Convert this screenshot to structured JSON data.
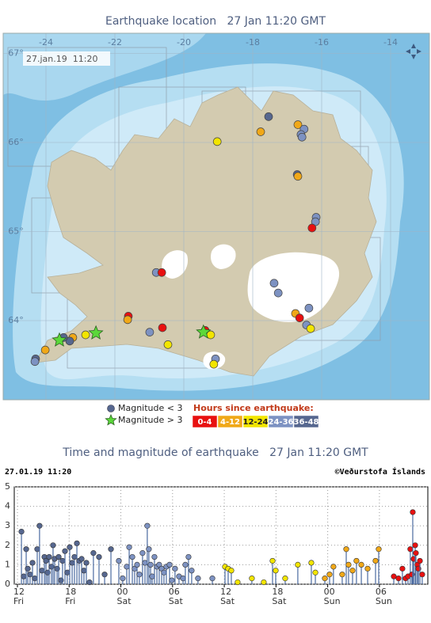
{
  "map": {
    "title": "Earthquake location   27 Jan 11:20 GMT",
    "timestamp": "27.jan.19  11:20",
    "lonticks": [
      -24,
      -22,
      -20,
      -18,
      -16,
      -14
    ],
    "latticks": [
      {
        "value": 67,
        "label": "67°"
      },
      {
        "value": 66,
        "label": "66°"
      },
      {
        "value": 65,
        "label": "65°"
      },
      {
        "value": 64,
        "label": "64°"
      }
    ],
    "quakes": [
      {
        "lon": -17.54,
        "lat": 66.29,
        "age": "36-48"
      },
      {
        "lon": -17.77,
        "lat": 66.12,
        "age": "4-12"
      },
      {
        "lon": -16.69,
        "lat": 66.2,
        "age": "4-12"
      },
      {
        "lon": -16.51,
        "lat": 66.15,
        "age": "24-36"
      },
      {
        "lon": -16.6,
        "lat": 66.09,
        "age": "24-36"
      },
      {
        "lon": -16.57,
        "lat": 66.06,
        "age": "24-36"
      },
      {
        "lon": -19.03,
        "lat": 66.01,
        "age": "12-24"
      },
      {
        "lon": -16.71,
        "lat": 65.64,
        "age": "36-48"
      },
      {
        "lon": -16.69,
        "lat": 65.62,
        "age": "4-12"
      },
      {
        "lon": -16.16,
        "lat": 65.16,
        "age": "24-36"
      },
      {
        "lon": -16.18,
        "lat": 65.11,
        "age": "24-36"
      },
      {
        "lon": -16.28,
        "lat": 65.04,
        "age": "0-4"
      },
      {
        "lon": -20.8,
        "lat": 64.54,
        "age": "24-36"
      },
      {
        "lon": -20.64,
        "lat": 64.54,
        "age": "0-4"
      },
      {
        "lon": -17.38,
        "lat": 64.42,
        "age": "24-36"
      },
      {
        "lon": -17.26,
        "lat": 64.31,
        "age": "24-36"
      },
      {
        "lon": -16.37,
        "lat": 64.14,
        "age": "24-36"
      },
      {
        "lon": -16.76,
        "lat": 64.08,
        "age": "4-12"
      },
      {
        "lon": -16.64,
        "lat": 64.03,
        "age": "0-4"
      },
      {
        "lon": -16.44,
        "lat": 63.95,
        "age": "24-36"
      },
      {
        "lon": -16.32,
        "lat": 63.91,
        "age": "12-24"
      },
      {
        "lon": -21.61,
        "lat": 64.05,
        "age": "0-4"
      },
      {
        "lon": -21.63,
        "lat": 64.01,
        "age": "4-12"
      },
      {
        "lon": -20.62,
        "lat": 63.92,
        "age": "0-4"
      },
      {
        "lon": -20.99,
        "lat": 63.87,
        "age": "24-36"
      },
      {
        "lon": -20.46,
        "lat": 63.73,
        "age": "12-24"
      },
      {
        "lon": -19.38,
        "lat": 63.89,
        "age": "0-4"
      },
      {
        "lon": -19.22,
        "lat": 63.84,
        "age": "12-24"
      },
      {
        "lon": -19.08,
        "lat": 63.57,
        "age": "24-36"
      },
      {
        "lon": -19.13,
        "lat": 63.51,
        "age": "12-24"
      },
      {
        "lon": -22.85,
        "lat": 63.84,
        "age": "12-24"
      },
      {
        "lon": -23.22,
        "lat": 63.81,
        "age": "4-12"
      },
      {
        "lon": -23.31,
        "lat": 63.77,
        "age": "36-48"
      },
      {
        "lon": -23.49,
        "lat": 63.81,
        "age": "36-48"
      },
      {
        "lon": -24.02,
        "lat": 63.67,
        "age": "4-12"
      },
      {
        "lon": -24.3,
        "lat": 63.57,
        "age": "36-48"
      },
      {
        "lon": -24.32,
        "lat": 63.54,
        "age": "24-36"
      }
    ],
    "large_quakes": [
      {
        "lon": -23.61,
        "lat": 63.78
      },
      {
        "lon": -22.55,
        "lat": 63.86
      },
      {
        "lon": -19.43,
        "lat": 63.87
      }
    ],
    "legend": {
      "small": "Magnitude < 3",
      "large": "Magnitude > 3",
      "hours_title": "Hours since earthquake:"
    }
  },
  "chart_data": {
    "type": "stem",
    "title": "Time and magnitude of earthquake   27 Jan 11:20 GMT",
    "timestamp": "27.01.19 11:20",
    "credit": "©Veðurstofa Íslands",
    "xlim": [
      "2019-01-25T11:38",
      "2019-01-27T11:37"
    ],
    "xticks": [
      {
        "value": "2019-01-25T12:00",
        "label": "12"
      },
      {
        "value": "2019-01-25T18:00",
        "label": "18"
      },
      {
        "value": "2019-01-26T00:00",
        "label": "00"
      },
      {
        "value": "2019-01-26T06:00",
        "label": "06"
      },
      {
        "value": "2019-01-26T12:00",
        "label": "12"
      },
      {
        "value": "2019-01-26T18:00",
        "label": "18"
      },
      {
        "value": "2019-01-27T00:00",
        "label": "00"
      },
      {
        "value": "2019-01-27T06:00",
        "label": "06"
      }
    ],
    "xtick_days": [
      "Fri",
      "Fri",
      "Sat",
      "Sat",
      "Sat",
      "Sat",
      "Sun",
      "Sun"
    ],
    "ylim": [
      0,
      5
    ],
    "yticks": [
      0,
      1,
      2,
      3,
      4,
      5
    ],
    "grid": true,
    "series": [
      {
        "name": "0-4",
        "color": "#e81010",
        "x": [
          "2019-01-27T07:40",
          "2019-01-27T08:13",
          "2019-01-27T08:40",
          "2019-01-27T09:02",
          "2019-01-27T09:19",
          "2019-01-27T09:35",
          "2019-01-27T09:46",
          "2019-01-27T09:52",
          "2019-01-27T09:58",
          "2019-01-27T10:09",
          "2019-01-27T10:14",
          "2019-01-27T10:25",
          "2019-01-27T10:31",
          "2019-01-27T10:42",
          "2019-01-27T10:58"
        ],
        "values": [
          0.4,
          0.3,
          0.8,
          0.3,
          0.4,
          1.8,
          0.5,
          3.7,
          1.3,
          2.0,
          1.6,
          1.0,
          0.8,
          1.2,
          0.5
        ]
      },
      {
        "name": "4-12",
        "color": "#f0a818",
        "x": [
          "2019-01-26T23:40",
          "2019-01-27T00:13",
          "2019-01-27T00:40",
          "2019-01-27T01:41",
          "2019-01-27T02:09",
          "2019-01-27T02:25",
          "2019-01-27T02:53",
          "2019-01-27T03:20",
          "2019-01-27T03:54",
          "2019-01-27T04:38",
          "2019-01-27T05:33",
          "2019-01-27T05:55"
        ],
        "values": [
          0.3,
          0.5,
          0.9,
          0.5,
          1.8,
          1.0,
          0.7,
          1.2,
          1.0,
          0.8,
          1.2,
          1.8
        ]
      },
      {
        "name": "12-24",
        "color": "#f2e500",
        "x": [
          "2019-01-26T12:05",
          "2019-01-26T12:27",
          "2019-01-26T12:49",
          "2019-01-26T13:33",
          "2019-01-26T15:12",
          "2019-01-26T16:35",
          "2019-01-26T17:36",
          "2019-01-26T17:58",
          "2019-01-26T19:04",
          "2019-01-26T20:32",
          "2019-01-26T22:06",
          "2019-01-26T22:34"
        ],
        "values": [
          0.9,
          0.8,
          0.7,
          0.1,
          0.3,
          0.1,
          1.2,
          0.7,
          0.3,
          1.0,
          1.1,
          0.6
        ]
      },
      {
        "name": "24-36",
        "color": "#7d92c2",
        "x": [
          "2019-01-25T23:46",
          "2019-01-26T00:13",
          "2019-01-26T00:41",
          "2019-01-26T00:58",
          "2019-01-26T01:20",
          "2019-01-26T01:36",
          "2019-01-26T01:53",
          "2019-01-26T02:09",
          "2019-01-26T02:31",
          "2019-01-26T02:48",
          "2019-01-26T03:04",
          "2019-01-26T03:15",
          "2019-01-26T03:27",
          "2019-01-26T03:38",
          "2019-01-26T03:54",
          "2019-01-26T04:11",
          "2019-01-26T04:27",
          "2019-01-26T04:44",
          "2019-01-26T05:00",
          "2019-01-26T05:17",
          "2019-01-26T05:39",
          "2019-01-26T05:55",
          "2019-01-26T06:17",
          "2019-01-26T06:45",
          "2019-01-26T07:13",
          "2019-01-26T07:29",
          "2019-01-26T07:51",
          "2019-01-26T08:13",
          "2019-01-26T08:57",
          "2019-01-26T10:37"
        ],
        "values": [
          1.2,
          0.3,
          0.9,
          1.9,
          1.4,
          0.8,
          1.0,
          0.5,
          1.6,
          1.1,
          3.0,
          1.8,
          1.0,
          0.4,
          1.4,
          0.9,
          1.0,
          0.8,
          0.6,
          0.9,
          1.0,
          0.2,
          0.8,
          0.4,
          0.3,
          1.0,
          1.4,
          0.7,
          0.3,
          0.3
        ]
      },
      {
        "name": "36-48",
        "color": "#56678f",
        "x": [
          "2019-01-25T12:28",
          "2019-01-25T12:44",
          "2019-01-25T13:01",
          "2019-01-25T13:12",
          "2019-01-25T13:28",
          "2019-01-25T13:45",
          "2019-01-25T14:01",
          "2019-01-25T14:18",
          "2019-01-25T14:34",
          "2019-01-25T14:51",
          "2019-01-25T15:08",
          "2019-01-25T15:19",
          "2019-01-25T15:30",
          "2019-01-25T15:41",
          "2019-01-25T15:57",
          "2019-01-25T16:08",
          "2019-01-25T16:19",
          "2019-01-25T16:36",
          "2019-01-25T16:47",
          "2019-01-25T17:03",
          "2019-01-25T17:14",
          "2019-01-25T17:31",
          "2019-01-25T17:47",
          "2019-01-25T18:04",
          "2019-01-25T18:21",
          "2019-01-25T18:37",
          "2019-01-25T18:54",
          "2019-01-25T19:10",
          "2019-01-25T19:27",
          "2019-01-25T19:43",
          "2019-01-25T20:00",
          "2019-01-25T20:22",
          "2019-01-25T20:49",
          "2019-01-25T21:28",
          "2019-01-25T22:07",
          "2019-01-25T22:51"
        ],
        "values": [
          2.7,
          0.4,
          1.8,
          0.8,
          0.5,
          1.1,
          0.3,
          1.8,
          3.0,
          0.7,
          1.4,
          1.2,
          0.6,
          1.4,
          0.9,
          2.0,
          1.3,
          0.8,
          1.4,
          0.2,
          1.2,
          1.7,
          0.6,
          1.9,
          1.1,
          1.4,
          2.1,
          1.2,
          1.3,
          0.7,
          1.1,
          0.1,
          1.6,
          1.4,
          0.5,
          1.8
        ]
      }
    ]
  }
}
